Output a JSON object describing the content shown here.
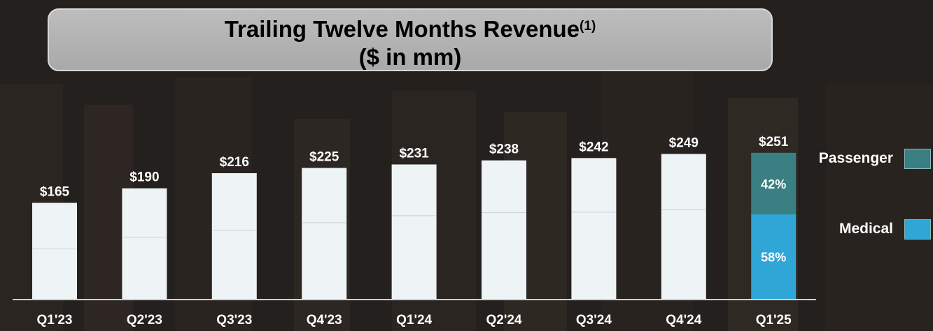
{
  "title": {
    "main": "Trailing Twelve Months Revenue",
    "superscript": "(1)",
    "subtitle": "($ in mm)"
  },
  "chart_data": {
    "type": "bar",
    "categories": [
      "Q1'23",
      "Q2'23",
      "Q3'23",
      "Q4'23",
      "Q1'24",
      "Q2'24",
      "Q3'24",
      "Q4'24",
      "Q1'25"
    ],
    "values": [
      165,
      190,
      216,
      225,
      231,
      238,
      242,
      249,
      251
    ],
    "value_labels": [
      "$165",
      "$190",
      "$216",
      "$225",
      "$231",
      "$238",
      "$242",
      "$249",
      "$251"
    ],
    "ylim": [
      0,
      270
    ],
    "grid": false,
    "legend_position": "right",
    "segments": [
      {
        "name": "Passenger",
        "color": "#3a7f82",
        "category": "Q1'25",
        "share": 42,
        "label": "42%"
      },
      {
        "name": "Medical",
        "color": "#2fa6d6",
        "category": "Q1'25",
        "share": 58,
        "label": "58%"
      }
    ],
    "faint_split_values": [
      86,
      106,
      118,
      131,
      143,
      148,
      149,
      153
    ]
  },
  "legend": [
    {
      "name": "Passenger",
      "color": "#3a7f82"
    },
    {
      "name": "Medical",
      "color": "#2fa6d6"
    }
  ],
  "colors": {
    "bar_fill": "#eef3f5",
    "axis": "#cfcfcf",
    "label_text": "#ffffff"
  }
}
